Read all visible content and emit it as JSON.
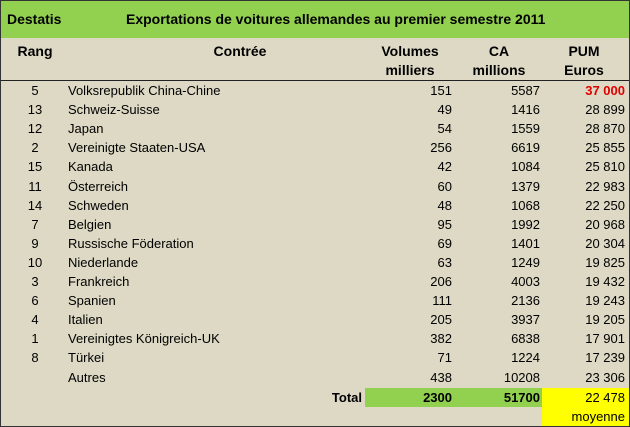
{
  "header": {
    "source": "Destatis",
    "title": "Exportations de voitures allemandes au premier semestre 2011"
  },
  "columns": [
    {
      "line1": "Rang",
      "line2": ""
    },
    {
      "line1": "Contrée",
      "line2": ""
    },
    {
      "line1": "Volumes",
      "line2": "milliers"
    },
    {
      "line1": "CA",
      "line2": "millions"
    },
    {
      "line1": "PUM",
      "line2": "Euros"
    }
  ],
  "rows": [
    {
      "rang": "5",
      "country": "Volksrepublik China-Chine",
      "volume": "151",
      "ca": "5587",
      "pum": "37 000"
    },
    {
      "rang": "13",
      "country": "Schweiz-Suisse",
      "volume": "49",
      "ca": "1416",
      "pum": "28 899"
    },
    {
      "rang": "12",
      "country": "Japan",
      "volume": "54",
      "ca": "1559",
      "pum": "28 870"
    },
    {
      "rang": "2",
      "country": "Vereinigte Staaten-USA",
      "volume": "256",
      "ca": "6619",
      "pum": "25 855"
    },
    {
      "rang": "15",
      "country": "Kanada",
      "volume": "42",
      "ca": "1084",
      "pum": "25 810"
    },
    {
      "rang": "11",
      "country": "Österreich",
      "volume": "60",
      "ca": "1379",
      "pum": "22 983"
    },
    {
      "rang": "14",
      "country": "Schweden",
      "volume": "48",
      "ca": "1068",
      "pum": "22 250"
    },
    {
      "rang": "7",
      "country": "Belgien",
      "volume": "95",
      "ca": "1992",
      "pum": "20 968"
    },
    {
      "rang": "9",
      "country": "Russische Föderation",
      "volume": "69",
      "ca": "1401",
      "pum": "20 304"
    },
    {
      "rang": "10",
      "country": "Niederlande",
      "volume": "63",
      "ca": "1249",
      "pum": "19 825"
    },
    {
      "rang": "3",
      "country": "Frankreich",
      "volume": "206",
      "ca": "4003",
      "pum": "19 432"
    },
    {
      "rang": "6",
      "country": "Spanien",
      "volume": "111",
      "ca": "2136",
      "pum": "19 243"
    },
    {
      "rang": "4",
      "country": "Italien",
      "volume": "205",
      "ca": "3937",
      "pum": "19 205"
    },
    {
      "rang": "1",
      "country": "Vereinigtes Königreich-UK",
      "volume": "382",
      "ca": "6838",
      "pum": "17 901"
    },
    {
      "rang": "8",
      "country": "Türkei",
      "volume": "71",
      "ca": "1224",
      "pum": "17 239"
    },
    {
      "rang": "",
      "country": "Autres",
      "volume": "438",
      "ca": "10208",
      "pum": "23 306"
    }
  ],
  "total": {
    "label": "Total",
    "volume": "2300",
    "ca": "51700",
    "pum": "22 478",
    "pum_note": "moyenne"
  },
  "colors": {
    "title_bg": "#92d050",
    "highlight": "#e00000",
    "average_bg": "#ffff00",
    "background": "#ddd9c4"
  }
}
